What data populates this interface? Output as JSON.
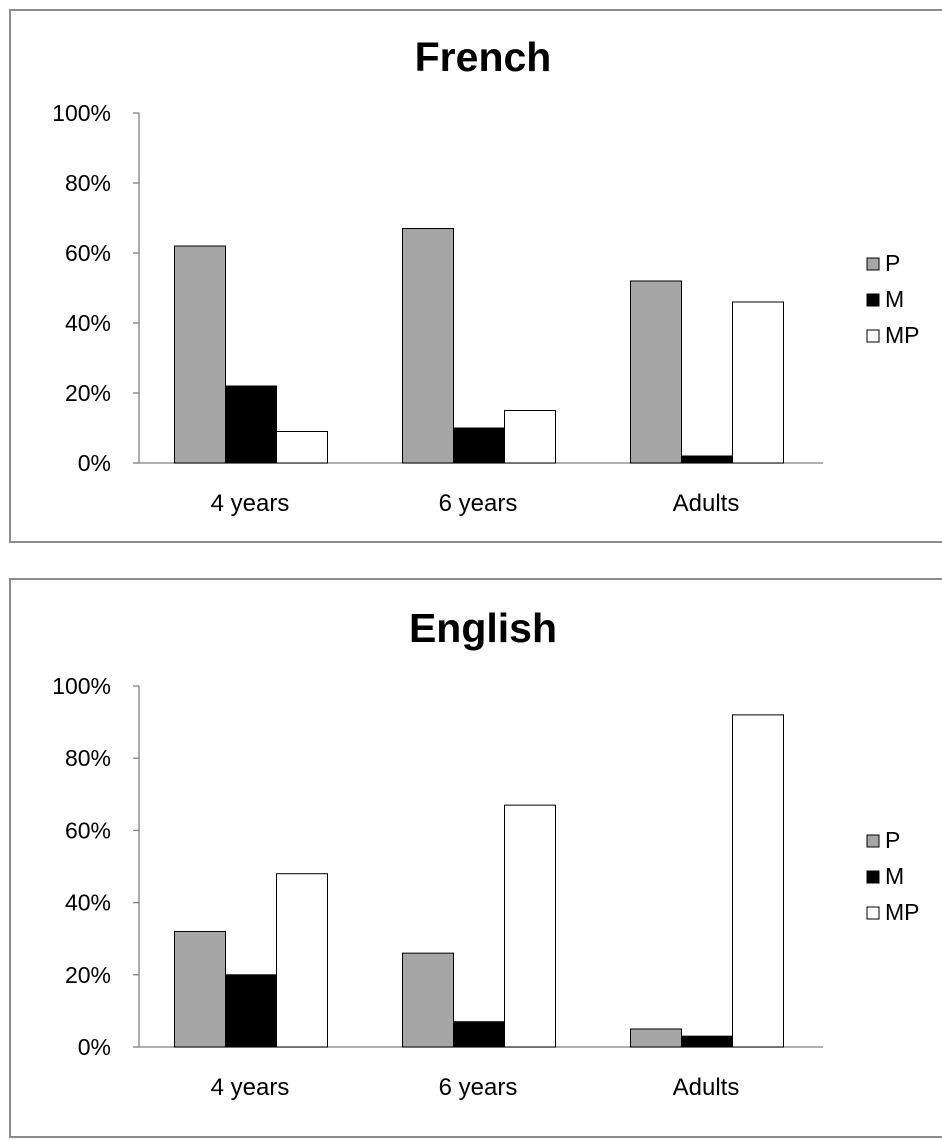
{
  "chart_data": [
    {
      "type": "bar",
      "title": "French",
      "categories": [
        "4 years",
        "6 years",
        "Adults"
      ],
      "series": [
        {
          "name": "P",
          "color": "#a6a6a6",
          "values": [
            62,
            67,
            52
          ]
        },
        {
          "name": "M",
          "color": "#000000",
          "values": [
            22,
            10,
            2
          ]
        },
        {
          "name": "MP",
          "color": "#ffffff",
          "values": [
            9,
            15,
            46
          ]
        }
      ],
      "yticks": [
        "0%",
        "20%",
        "40%",
        "60%",
        "80%",
        "100%"
      ],
      "ylim": [
        0,
        100
      ],
      "grid": false,
      "legend_position": "right"
    },
    {
      "type": "bar",
      "title": "English",
      "categories": [
        "4 years",
        "6 years",
        "Adults"
      ],
      "series": [
        {
          "name": "P",
          "color": "#a6a6a6",
          "values": [
            32,
            26,
            5
          ]
        },
        {
          "name": "M",
          "color": "#000000",
          "values": [
            20,
            7,
            3
          ]
        },
        {
          "name": "MP",
          "color": "#ffffff",
          "values": [
            48,
            67,
            92
          ]
        }
      ],
      "yticks": [
        "0%",
        "20%",
        "40%",
        "60%",
        "80%",
        "100%"
      ],
      "ylim": [
        0,
        100
      ],
      "grid": false,
      "legend_position": "right"
    }
  ]
}
